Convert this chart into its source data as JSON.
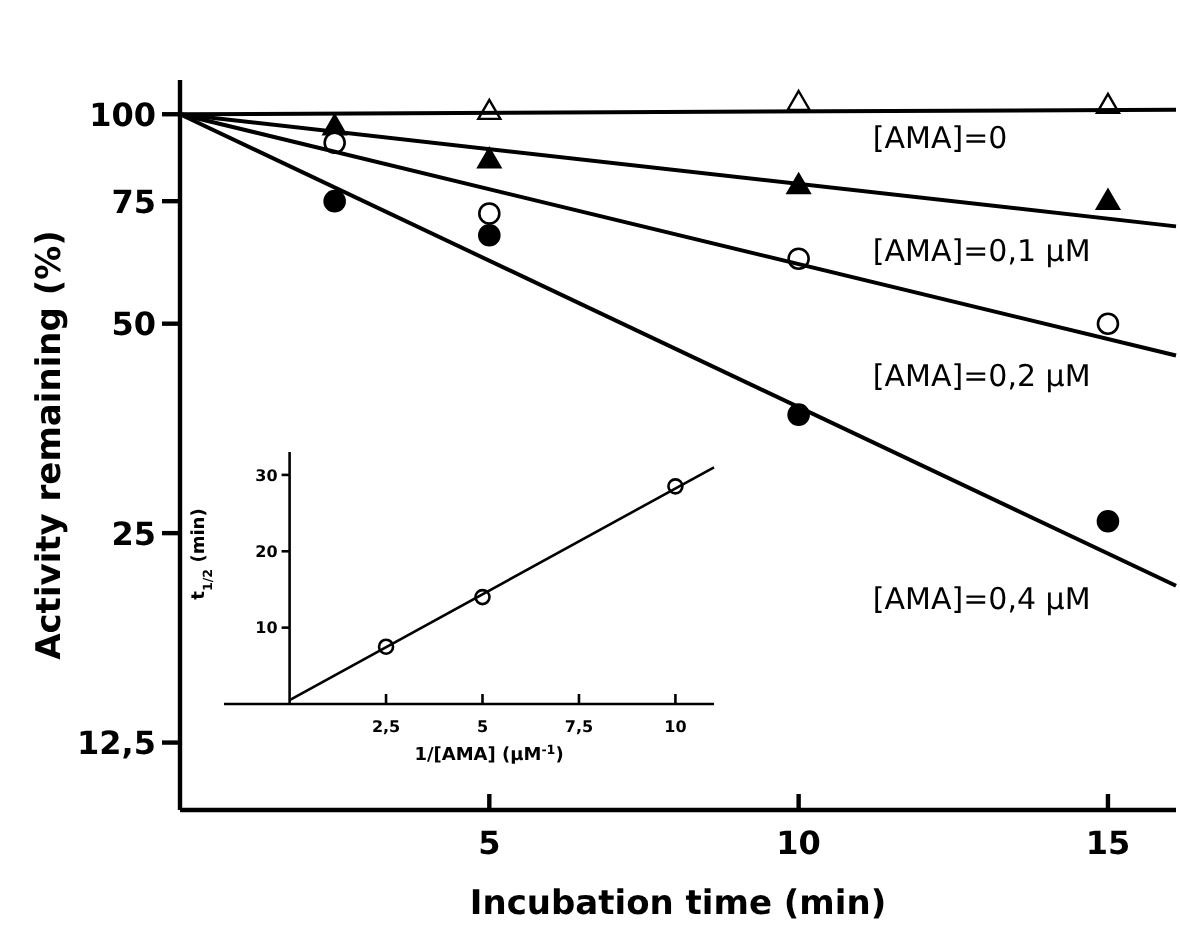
{
  "chart_data": [
    {
      "type": "scatter",
      "xlabel": "Incubation time (min)",
      "ylabel": "Activity remaining (%)",
      "xlim": [
        0,
        16.1
      ],
      "ylim": [
        10,
        112
      ],
      "log": "y",
      "xticks": [
        5,
        10,
        15
      ],
      "yticks": [
        {
          "value": 12.5,
          "label": "12,5"
        },
        25,
        50,
        75,
        100
      ],
      "legend": false,
      "grid": false,
      "series": [
        {
          "marker": "triangle",
          "color": "#ffffff",
          "x": [
            5,
            10,
            15
          ],
          "values": [
            101,
            104,
            103
          ]
        },
        {
          "marker": "triangle",
          "color": "#000000",
          "x": [
            2.5,
            5,
            10,
            15
          ],
          "values": [
            96,
            86,
            79,
            75
          ]
        },
        {
          "marker": "circle",
          "color": "#ffffff",
          "x": [
            2.5,
            5,
            10,
            15
          ],
          "values": [
            91,
            72,
            62,
            50
          ]
        },
        {
          "marker": "circle",
          "color": "#000000",
          "x": [
            2.5,
            5,
            10,
            15
          ],
          "values": [
            75,
            67,
            37,
            26
          ]
        },
        {
          "type": "line",
          "name": "[AMA]=0",
          "color": "#000000",
          "x": [
            0,
            16.1
          ],
          "values": [
            100,
            101.5
          ]
        },
        {
          "type": "line",
          "name": "[AMA]=0,1 μM",
          "color": "#000000",
          "x": [
            0,
            16.1
          ],
          "values": [
            100,
            69
          ]
        },
        {
          "type": "line",
          "name": "[AMA]=0,2 μM",
          "color": "#000000",
          "x": [
            0,
            16.1
          ],
          "values": [
            100,
            45
          ]
        },
        {
          "type": "line",
          "name": "[AMA]=0,4 μM",
          "color": "#000000",
          "x": [
            0,
            16.1
          ],
          "values": [
            100,
            21
          ]
        }
      ]
    },
    {
      "type": "scatter",
      "xlabel": "1/[AMA] (μM$^{-1}$)",
      "ylabel": "t$_{1/2}$ (min)",
      "xlim": [
        -1.7,
        11
      ],
      "ylim": [
        0,
        33
      ],
      "xticks": [
        {
          "value": 2.5,
          "label": "2,5"
        },
        5,
        {
          "value": 7.5,
          "label": "7,5"
        },
        10
      ],
      "yticks": [
        10,
        20,
        30
      ],
      "legend": false,
      "grid": false,
      "series": [
        {
          "marker": "circle",
          "color": "#ffffff",
          "x": [
            2.5,
            5,
            10
          ],
          "values": [
            7.5,
            14,
            28.5
          ]
        },
        {
          "type": "line",
          "color": "#000000",
          "x": [
            0,
            11
          ],
          "values": [
            0.5,
            31
          ]
        }
      ]
    }
  ]
}
